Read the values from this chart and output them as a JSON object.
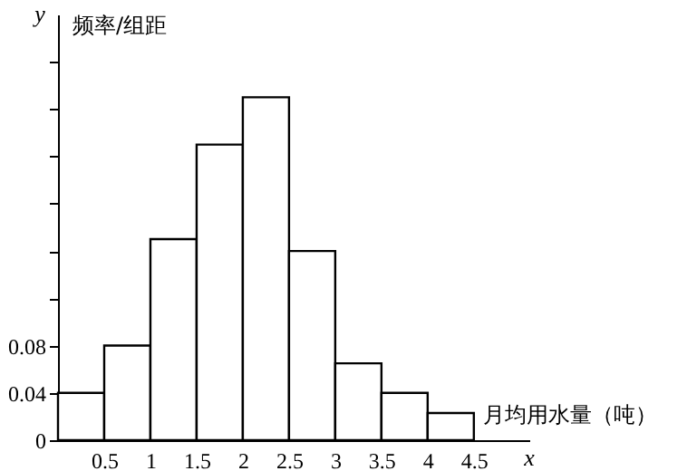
{
  "chart_data": {
    "type": "histogram",
    "xlabel": "月均用水量（吨）",
    "ylabel": "频率/组距",
    "annotations": [
      "x",
      "y"
    ],
    "bins": [
      0,
      0.5,
      1,
      1.5,
      2,
      2.5,
      3,
      3.5,
      4,
      4.5
    ],
    "values": [
      0.04,
      0.08,
      0.17,
      0.25,
      0.29,
      0.16,
      0.065,
      0.04,
      0.023
    ],
    "color": "#ffffff",
    "xlim": [
      0,
      5.1
    ],
    "ylim": [
      0,
      0.36
    ],
    "xticks": [
      0.5,
      1,
      1.5,
      2,
      2.5,
      3,
      3.5,
      4,
      4.5
    ],
    "yticks": [
      0,
      0.04,
      0.08,
      {
        "value": 0.12,
        "label": null
      },
      {
        "value": 0.16,
        "label": null
      },
      {
        "value": 0.2,
        "label": null
      },
      {
        "value": 0.24,
        "label": null
      },
      {
        "value": 0.28,
        "label": null
      },
      {
        "value": 0.32,
        "label": null
      }
    ],
    "grid": false
  }
}
